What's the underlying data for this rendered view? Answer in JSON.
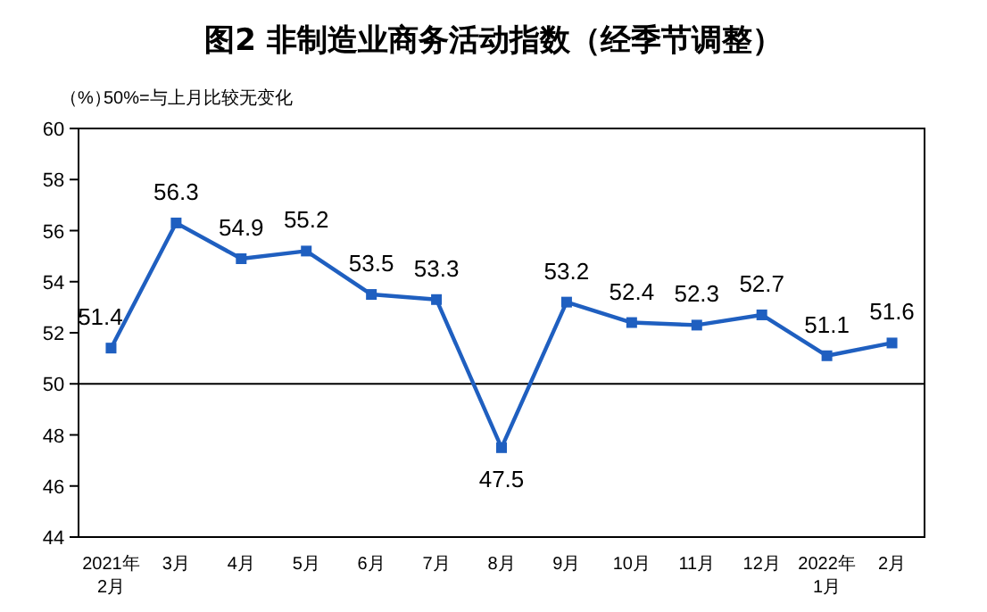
{
  "chart_data": {
    "type": "line",
    "title": "图2  非制造业商务活动指数（经季节调整）",
    "ylabel": "（%）",
    "annotations": [
      "50%=与上月比较无变化"
    ],
    "categories": [
      "2021年\n2月",
      "3月",
      "4月",
      "5月",
      "6月",
      "7月",
      "8月",
      "9月",
      "10月",
      "11月",
      "12月",
      "2022年\n1月",
      "2月"
    ],
    "series": [
      {
        "color": "#1f5fc0",
        "values": [
          51.4,
          56.3,
          54.9,
          55.2,
          53.5,
          53.3,
          47.5,
          53.2,
          52.4,
          52.3,
          52.7,
          51.1,
          51.6
        ]
      }
    ],
    "ylim": [
      44,
      60
    ],
    "yticks": [
      44,
      46,
      48,
      50,
      52,
      54,
      56,
      58,
      60
    ],
    "ref_lines": [
      {
        "axis": "y",
        "value": 50,
        "color": "#000000"
      }
    ],
    "data_labels": true,
    "marker": "square",
    "grid": false
  }
}
